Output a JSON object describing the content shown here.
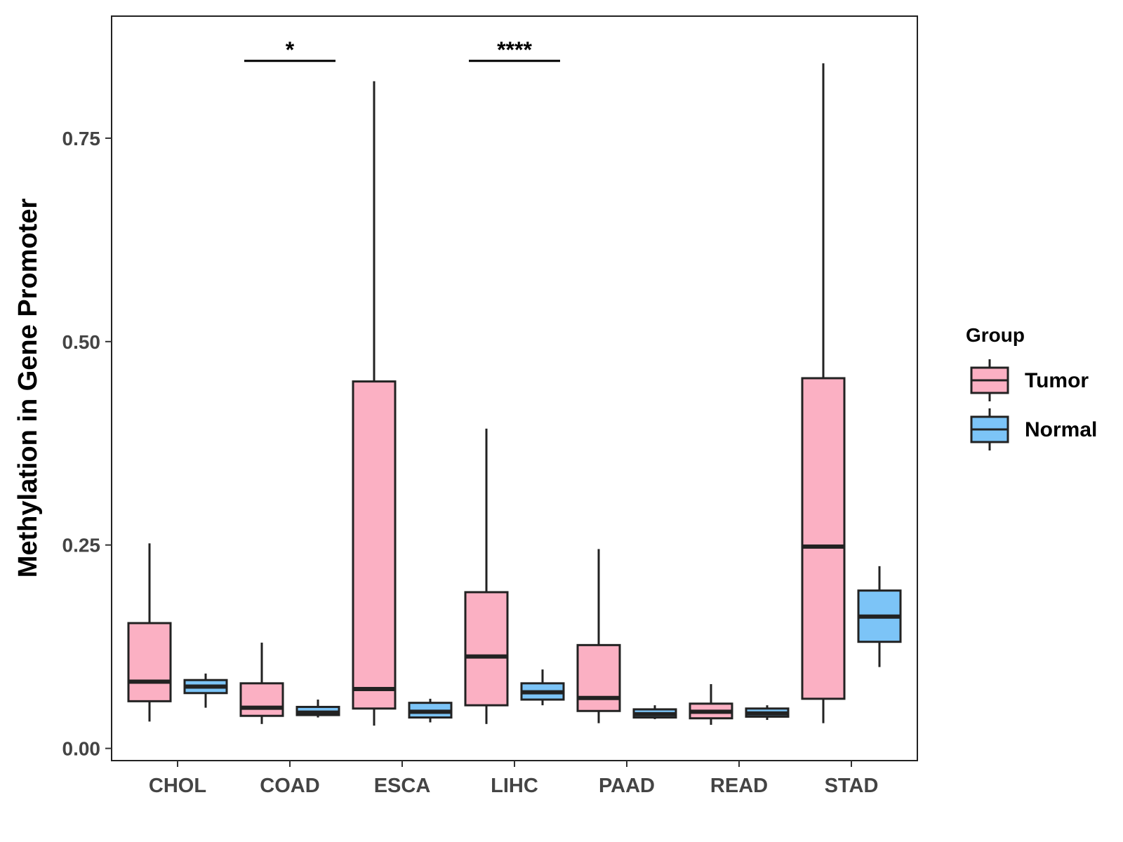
{
  "chart_data": {
    "type": "boxplot",
    "title": "",
    "xlabel": "",
    "ylabel": "Methylation in Gene Promoter",
    "ylim": [
      -0.015,
      0.9
    ],
    "yticks": [
      0.0,
      0.25,
      0.5,
      0.75
    ],
    "ytick_labels": [
      "0.00",
      "0.25",
      "0.50",
      "0.75"
    ],
    "categories": [
      "CHOL",
      "COAD",
      "ESCA",
      "LIHC",
      "PAAD",
      "READ",
      "STAD"
    ],
    "legend": {
      "title": "Group",
      "position": "right",
      "entries": [
        "Tumor",
        "Normal"
      ]
    },
    "colors": {
      "Tumor": "#FBB0C3",
      "Normal": "#7CC4F7",
      "outline": "#222222"
    },
    "series": [
      {
        "name": "Tumor",
        "boxes": [
          {
            "category": "CHOL",
            "whisker_low": 0.033,
            "q1": 0.058,
            "median": 0.082,
            "q3": 0.154,
            "whisker_high": 0.252
          },
          {
            "category": "COAD",
            "whisker_low": 0.03,
            "q1": 0.04,
            "median": 0.05,
            "q3": 0.08,
            "whisker_high": 0.13
          },
          {
            "category": "ESCA",
            "whisker_low": 0.028,
            "q1": 0.049,
            "median": 0.073,
            "q3": 0.451,
            "whisker_high": 0.82
          },
          {
            "category": "LIHC",
            "whisker_low": 0.03,
            "q1": 0.053,
            "median": 0.113,
            "q3": 0.192,
            "whisker_high": 0.393
          },
          {
            "category": "PAAD",
            "whisker_low": 0.031,
            "q1": 0.046,
            "median": 0.062,
            "q3": 0.127,
            "whisker_high": 0.245
          },
          {
            "category": "READ",
            "whisker_low": 0.029,
            "q1": 0.037,
            "median": 0.045,
            "q3": 0.055,
            "whisker_high": 0.079
          },
          {
            "category": "STAD",
            "whisker_low": 0.031,
            "q1": 0.061,
            "median": 0.248,
            "q3": 0.455,
            "whisker_high": 0.842
          }
        ]
      },
      {
        "name": "Normal",
        "boxes": [
          {
            "category": "CHOL",
            "whisker_low": 0.05,
            "q1": 0.068,
            "median": 0.076,
            "q3": 0.084,
            "whisker_high": 0.092
          },
          {
            "category": "COAD",
            "whisker_low": 0.038,
            "q1": 0.041,
            "median": 0.044,
            "q3": 0.051,
            "whisker_high": 0.06
          },
          {
            "category": "ESCA",
            "whisker_low": 0.032,
            "q1": 0.038,
            "median": 0.045,
            "q3": 0.056,
            "whisker_high": 0.061
          },
          {
            "category": "LIHC",
            "whisker_low": 0.053,
            "q1": 0.06,
            "median": 0.069,
            "q3": 0.08,
            "whisker_high": 0.097
          },
          {
            "category": "PAAD",
            "whisker_low": 0.036,
            "q1": 0.038,
            "median": 0.042,
            "q3": 0.048,
            "whisker_high": 0.053
          },
          {
            "category": "READ",
            "whisker_low": 0.035,
            "q1": 0.039,
            "median": 0.043,
            "q3": 0.049,
            "whisker_high": 0.053
          },
          {
            "category": "STAD",
            "whisker_low": 0.1,
            "q1": 0.131,
            "median": 0.162,
            "q3": 0.194,
            "whisker_high": 0.224
          }
        ]
      }
    ],
    "annotations": [
      {
        "category": "COAD",
        "label": "*",
        "y": 0.845
      },
      {
        "category": "LIHC",
        "label": "****",
        "y": 0.845
      }
    ]
  }
}
